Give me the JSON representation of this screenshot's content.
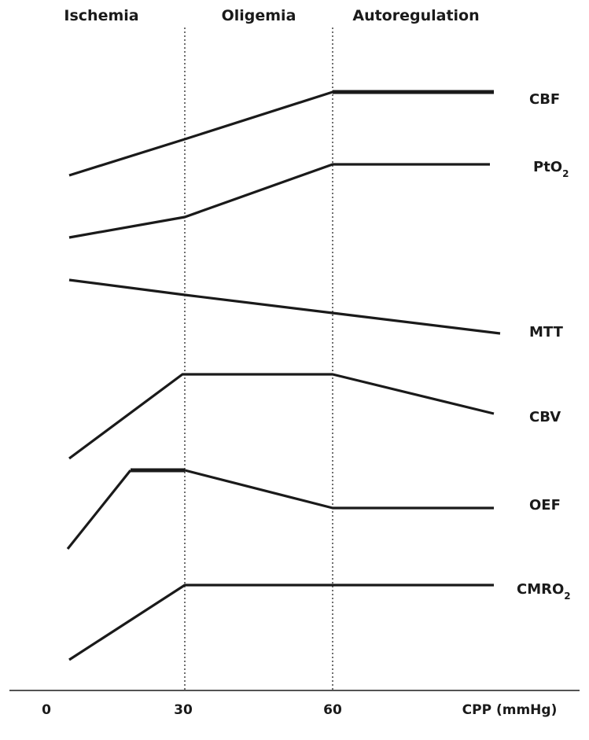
{
  "zones": [
    {
      "id": "ischemia",
      "label": "Ischemia"
    },
    {
      "id": "oligemia",
      "label": "Oligemia"
    },
    {
      "id": "autoregulation",
      "label": "Autoregulation"
    }
  ],
  "axis": {
    "ticks": [
      "0",
      "30",
      "60"
    ],
    "label": "CPP (mmHg)"
  },
  "curves": [
    {
      "id": "cbf",
      "label": "CBF",
      "sub": ""
    },
    {
      "id": "pto2",
      "label": "PtO",
      "sub": "2"
    },
    {
      "id": "mtt",
      "label": "MTT",
      "sub": ""
    },
    {
      "id": "cbv",
      "label": "CBV",
      "sub": ""
    },
    {
      "id": "oef",
      "label": "OEF",
      "sub": ""
    },
    {
      "id": "cmro2",
      "label": "CMRO",
      "sub": "2"
    }
  ]
}
